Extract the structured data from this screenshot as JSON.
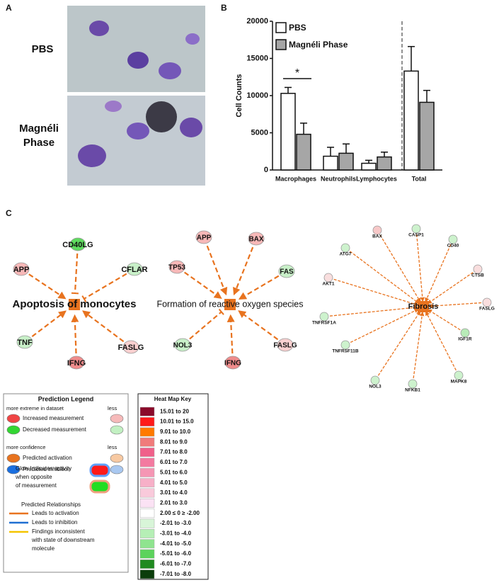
{
  "panel_a": {
    "label": "A",
    "rows": [
      {
        "label": "PBS"
      },
      {
        "label_lines": [
          "Magnéli",
          "Phase"
        ]
      }
    ]
  },
  "chart_data": {
    "type": "bar",
    "panel_label": "B",
    "ylabel": "Cell Counts",
    "categories": [
      "Macrophages",
      "Neutrophils",
      "Lymphocytes",
      "Total"
    ],
    "series": [
      {
        "name": "PBS",
        "color": "#ffffff",
        "values": [
          10300,
          1850,
          900,
          13300
        ],
        "errors": [
          800,
          1200,
          400,
          3300
        ]
      },
      {
        "name": "Magnéli Phase",
        "color": "#a6a6a6",
        "values": [
          4800,
          2250,
          1750,
          9100
        ],
        "errors": [
          1500,
          1250,
          650,
          1600
        ]
      }
    ],
    "ylim": [
      0,
      20000
    ],
    "yticks": [
      0,
      5000,
      10000,
      15000,
      20000
    ],
    "significance": "*"
  },
  "panel_c": {
    "label": "C",
    "networks": [
      {
        "center": "Apoptosis of monocytes",
        "nodes": [
          {
            "label": "CD40LG",
            "color": "#5fdc5f"
          },
          {
            "label": "APP",
            "color": "#f7b8b8"
          },
          {
            "label": "CFLAR",
            "color": "#c8f0c8"
          },
          {
            "label": "TNF",
            "color": "#c8f0c8"
          },
          {
            "label": "IFNG",
            "color": "#f08c8c"
          },
          {
            "label": "FASLG",
            "color": "#f9d0d0"
          }
        ]
      },
      {
        "center": "Formation of reactive oxygen species",
        "nodes": [
          {
            "label": "APP",
            "color": "#f7b8b8"
          },
          {
            "label": "BAX",
            "color": "#f7b8b8"
          },
          {
            "label": "TP53",
            "color": "#f7b8b8"
          },
          {
            "label": "FAS",
            "color": "#c8f0c8"
          },
          {
            "label": "NOL3",
            "color": "#c8f0c8"
          },
          {
            "label": "IFNG",
            "color": "#f08c8c"
          },
          {
            "label": "FASLG",
            "color": "#f9d0d0"
          }
        ]
      },
      {
        "center": "Fibrosis",
        "nodes": [
          {
            "label": "BAX",
            "color": "#f7c8c8"
          },
          {
            "label": "CASP1",
            "color": "#cdf2cd"
          },
          {
            "label": "ATG7",
            "color": "#cdf2cd"
          },
          {
            "label": "CD40",
            "color": "#cdf2cd"
          },
          {
            "label": "AKT1",
            "color": "#f9dede"
          },
          {
            "label": "CTSB",
            "color": "#f9dede"
          },
          {
            "label": "FASLG",
            "color": "#f9dede"
          },
          {
            "label": "TNFRSF1A",
            "color": "#cdf2cd"
          },
          {
            "label": "IGF1R",
            "color": "#b8ecb8"
          },
          {
            "label": "TNFRSF11B",
            "color": "#cdf2cd"
          },
          {
            "label": "MAPK8",
            "color": "#cdf2cd"
          },
          {
            "label": "NOL3",
            "color": "#cdf2cd"
          },
          {
            "label": "NFKB1",
            "color": "#cdf2cd"
          }
        ]
      }
    ]
  },
  "prediction_legend": {
    "title": "Prediction Legend",
    "measurement_header": {
      "left": "more extreme in dataset",
      "right": "less"
    },
    "measurement_items": [
      {
        "label": "Increased measurement",
        "colors": [
          "#f04545",
          "#f6baba"
        ]
      },
      {
        "label": "Decreased measurement",
        "colors": [
          "#33d633",
          "#c2f0c2"
        ]
      }
    ],
    "confidence_header": {
      "left": "more confidence",
      "right": "less"
    },
    "confidence_items": [
      {
        "label": "Predicted activation",
        "colors": [
          "#e8731f",
          "#f7c9a2"
        ]
      },
      {
        "label": "Predicted inhibition",
        "colors": [
          "#1a6fe0",
          "#a9c8f0"
        ]
      }
    ],
    "glow_lines": [
      "Glow Indicates activity",
      "when opposite",
      "of measurement"
    ],
    "relationships_title": "Predicted Relationships",
    "relationships": [
      {
        "label_lines": [
          "Leads to activation"
        ],
        "color": "#e8731f"
      },
      {
        "label_lines": [
          "Leads to inhibition"
        ],
        "color": "#1f6fd1"
      },
      {
        "label_lines": [
          "Findings inconsistent",
          "with state of downstream",
          "molecule"
        ],
        "color": "#f5c400"
      }
    ]
  },
  "heat_map_key": {
    "title": "Heat Map Key",
    "entries": [
      {
        "label": "15.01 to 20",
        "color": "#8b0a2a"
      },
      {
        "label": "10.01 to 15.0",
        "color": "#ff1a1a"
      },
      {
        "label": "9.01 to 10.0",
        "color": "#ff7a00"
      },
      {
        "label": "8.01 to 9.0",
        "color": "#f07b7b"
      },
      {
        "label": "7.01 to 8.0",
        "color": "#f0608a"
      },
      {
        "label": "6.01 to 7.0",
        "color": "#f37aa0"
      },
      {
        "label": "5.01 to 6.0",
        "color": "#f596b4"
      },
      {
        "label": "4.01 to 5.0",
        "color": "#f7b0c8"
      },
      {
        "label": "3.01 to 4.0",
        "color": "#f9cadb"
      },
      {
        "label": "2.01 to 3.0",
        "color": "#fbe2f4"
      },
      {
        "label": "2.00 ≤ 0 ≥ -2.00",
        "color": "#ffffff"
      },
      {
        "label": "-2.01 to -3.0",
        "color": "#d8f5d8"
      },
      {
        "label": "-3.01 to -4.0",
        "color": "#b6efb6"
      },
      {
        "label": "-4.01 to -5.0",
        "color": "#8fe48f"
      },
      {
        "label": "-5.01 to -6.0",
        "color": "#5cd35c"
      },
      {
        "label": "-6.01 to -7.0",
        "color": "#1f8a1f"
      },
      {
        "label": "-7.01 to -8.0",
        "color": "#0b3d0b"
      }
    ]
  }
}
